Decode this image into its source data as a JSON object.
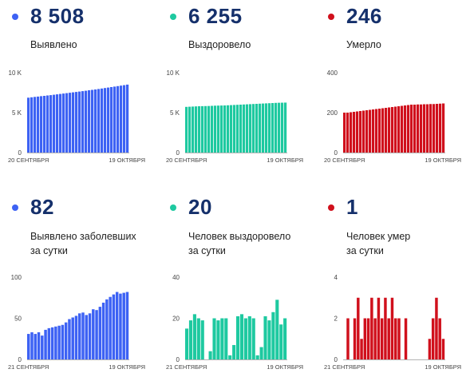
{
  "panels": [
    {
      "value": "8 508",
      "label": "Выявлено",
      "color": "#3d62f4"
    },
    {
      "value": "6 255",
      "label": "Выздоровело",
      "color": "#1ec9a0"
    },
    {
      "value": "246",
      "label": "Умерло",
      "color": "#d0101c"
    },
    {
      "value": "82",
      "label": "Выявлено заболевших\nза сутки",
      "color": "#3d62f4"
    },
    {
      "value": "20",
      "label": "Человек выздоровело\nза сутки",
      "color": "#1ec9a0"
    },
    {
      "value": "1",
      "label": "Человек умер\nза сутки",
      "color": "#d0101c"
    }
  ],
  "chart_data": [
    {
      "type": "bar",
      "ylim": [
        0,
        10000
      ],
      "yticks": [
        "10 K",
        "5 K",
        "0"
      ],
      "xlabels": [
        "20 СЕНТЯБРЯ",
        "19 ОКТЯБРЯ"
      ],
      "color": "#3d62f4",
      "values": [
        6870,
        6920,
        6970,
        7010,
        7060,
        7100,
        7150,
        7190,
        7240,
        7290,
        7340,
        7390,
        7440,
        7490,
        7540,
        7590,
        7640,
        7690,
        7740,
        7800,
        7850,
        7900,
        7960,
        8020,
        8080,
        8140,
        8200,
        8260,
        8320,
        8380,
        8440,
        8508
      ]
    },
    {
      "type": "bar",
      "ylim": [
        0,
        10000
      ],
      "yticks": [
        "10 K",
        "5 K",
        "0"
      ],
      "xlabels": [
        "20 СЕНТЯБРЯ",
        "19 ОКТЯБРЯ"
      ],
      "color": "#1ec9a0",
      "values": [
        5720,
        5740,
        5760,
        5780,
        5800,
        5810,
        5820,
        5830,
        5850,
        5870,
        5880,
        5890,
        5900,
        5920,
        5940,
        5960,
        5980,
        6000,
        6020,
        6040,
        6060,
        6080,
        6100,
        6120,
        6140,
        6160,
        6180,
        6200,
        6220,
        6235,
        6245,
        6255
      ]
    },
    {
      "type": "bar",
      "ylim": [
        0,
        400
      ],
      "yticks": [
        "400",
        "200",
        "0"
      ],
      "xlabels": [
        "20 СЕНТЯБРЯ",
        "19 ОКТЯБРЯ"
      ],
      "color": "#d0101c",
      "values": [
        200,
        200,
        202,
        204,
        206,
        208,
        210,
        212,
        214,
        216,
        218,
        220,
        222,
        224,
        226,
        228,
        230,
        232,
        234,
        236,
        238,
        240,
        240,
        241,
        241,
        242,
        242,
        243,
        243,
        244,
        245,
        246
      ]
    },
    {
      "type": "bar",
      "ylim": [
        0,
        100
      ],
      "yticks": [
        "100",
        "50",
        "0"
      ],
      "xlabels": [
        "21 СЕНТЯБРЯ",
        "19 ОКТЯБРЯ"
      ],
      "color": "#3d62f4",
      "values": [
        31,
        33,
        31,
        33,
        29,
        36,
        38,
        39,
        40,
        41,
        42,
        45,
        49,
        51,
        53,
        56,
        57,
        54,
        56,
        61,
        60,
        64,
        69,
        73,
        76,
        79,
        82,
        80,
        81,
        82
      ]
    },
    {
      "type": "bar",
      "ylim": [
        0,
        40
      ],
      "yticks": [
        "40",
        "20",
        "0"
      ],
      "xlabels": [
        "21 СЕНТЯБРЯ",
        "19 ОКТЯБРЯ"
      ],
      "color": "#1ec9a0",
      "values": [
        15,
        19,
        22,
        20,
        19,
        0,
        4,
        20,
        19,
        20,
        20,
        2,
        7,
        21,
        22,
        20,
        21,
        20,
        2,
        6,
        21,
        19,
        23,
        29,
        17,
        20
      ]
    },
    {
      "type": "bar",
      "ylim": [
        0,
        4
      ],
      "yticks": [
        "4",
        "2",
        "0"
      ],
      "xlabels": [
        "21 СЕНТЯБРЯ",
        "19 ОКТЯБРЯ"
      ],
      "color": "#d0101c",
      "values": [
        0,
        2,
        0,
        2,
        3,
        1,
        2,
        2,
        3,
        2,
        3,
        2,
        3,
        2,
        3,
        2,
        2,
        0,
        2,
        0,
        0,
        0,
        0,
        0,
        0,
        1,
        2,
        3,
        2,
        1
      ]
    }
  ]
}
